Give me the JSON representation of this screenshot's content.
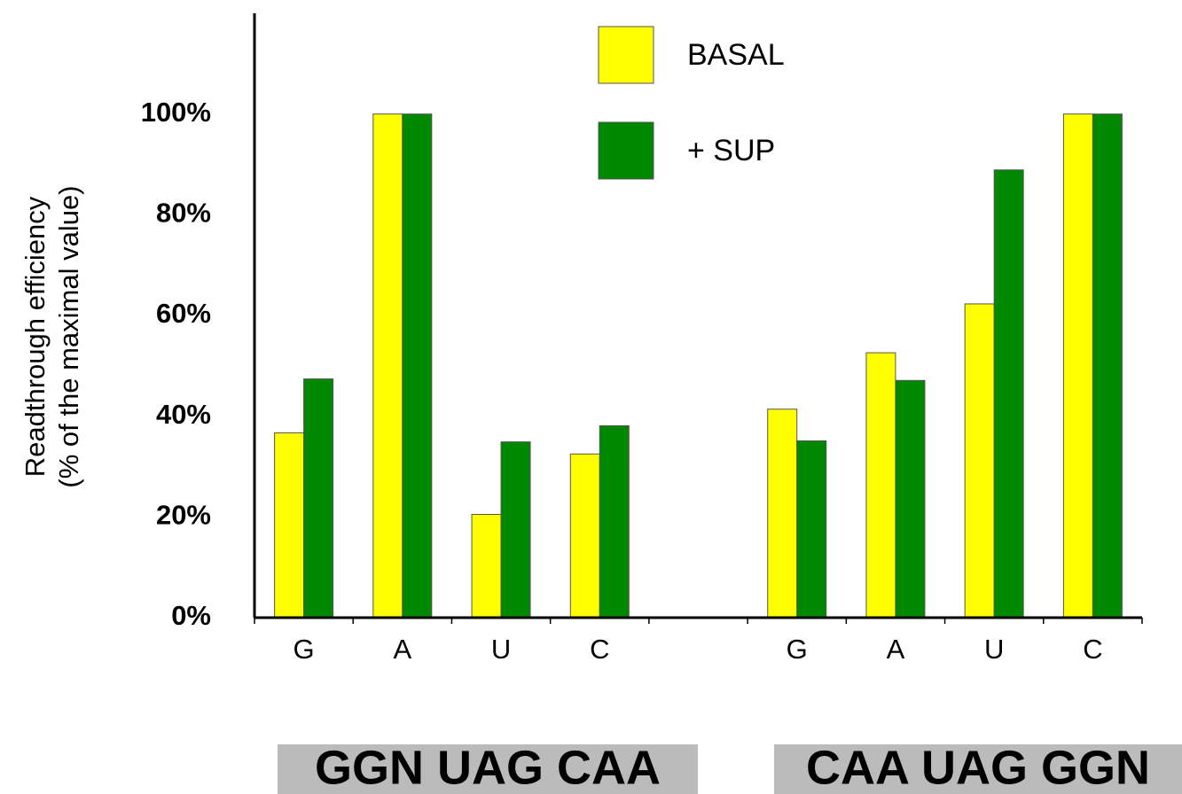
{
  "chart_data": {
    "type": "bar",
    "ylabel": [
      "Readthrough efficiency",
      "(% of the maximal value)"
    ],
    "categories": [
      "G",
      "A",
      "U",
      "C",
      null,
      "G",
      "A",
      "U",
      "C"
    ],
    "series": [
      {
        "name": "BASAL",
        "color": "#ffff00",
        "values": [
          36.7,
          100,
          20.5,
          32.5,
          null,
          41.4,
          52.6,
          62.3,
          100
        ]
      },
      {
        "name": "+ SUP",
        "color": "#008800",
        "values": [
          47.4,
          100,
          34.9,
          38.1,
          null,
          35.1,
          47.1,
          88.9,
          100
        ]
      }
    ],
    "ylim": [
      0,
      120
    ],
    "yticks": [
      {
        "value": 0,
        "label": "0%"
      },
      {
        "value": 20,
        "label": "20%"
      },
      {
        "value": 40,
        "label": "40%"
      },
      {
        "value": 60,
        "label": "60%"
      },
      {
        "value": 80,
        "label": "80%"
      },
      {
        "value": 100,
        "label": "100%"
      }
    ],
    "group_labels": [
      "GGN UAG CAA",
      "CAA UAG GGN"
    ],
    "legend": "top-center",
    "grid": false
  }
}
